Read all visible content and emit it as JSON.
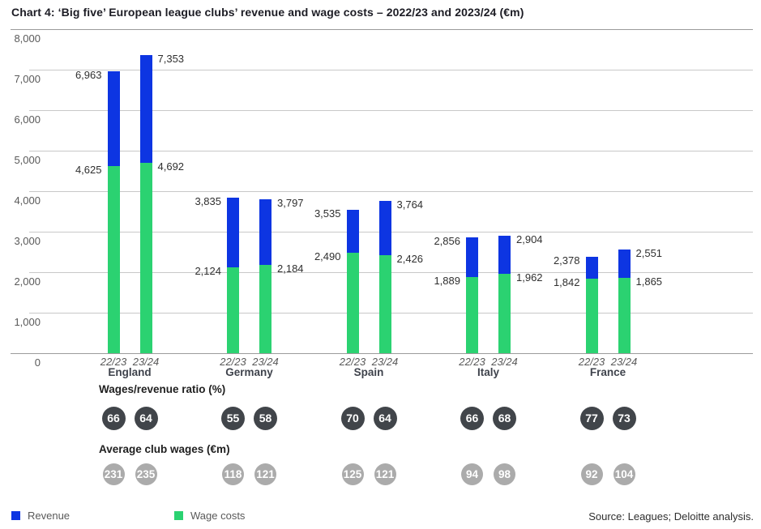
{
  "title": "Chart 4: ‘Big five’ European league clubs’ revenue and wage costs – 2022/23 and 2023/24 (€m)",
  "chart_data": {
    "type": "bar",
    "subtype": "overlaid-columns",
    "unit": "€m",
    "groups": [
      "England",
      "Germany",
      "Spain",
      "Italy",
      "France"
    ],
    "seasons": [
      "22/23",
      "23/24"
    ],
    "series": [
      {
        "name": "Revenue",
        "color": "#0d35e2",
        "values": [
          [
            6963,
            7353
          ],
          [
            3835,
            3797
          ],
          [
            3535,
            3764
          ],
          [
            2856,
            2904
          ],
          [
            2378,
            2551
          ]
        ]
      },
      {
        "name": "Wage costs",
        "color": "#2bd271",
        "values": [
          [
            4625,
            4692
          ],
          [
            2124,
            2184
          ],
          [
            2490,
            2426
          ],
          [
            1889,
            1962
          ],
          [
            1842,
            1865
          ]
        ]
      }
    ],
    "y_axis": {
      "min": 0,
      "max": 8000,
      "step": 1000,
      "tick_labels": [
        "8,000",
        "7,000",
        "6,000",
        "5,000",
        "4,000",
        "3,000",
        "2,000",
        "1,000",
        "0"
      ]
    },
    "grid": "horizontal",
    "gridline_color": "#c8c8c8",
    "border_line_color": "#9b9b9b",
    "value_label_color": "#2f2f2f"
  },
  "ratio_section": {
    "label": "Wages/revenue ratio (%)",
    "circle_color": "#41454a",
    "values": [
      [
        66,
        64
      ],
      [
        55,
        58
      ],
      [
        70,
        64
      ],
      [
        66,
        68
      ],
      [
        77,
        73
      ]
    ]
  },
  "avg_wages_section": {
    "label": "Average club wages (€m)",
    "circle_color": "#ababab",
    "values": [
      [
        231,
        235
      ],
      [
        118,
        121
      ],
      [
        125,
        121
      ],
      [
        94,
        98
      ],
      [
        92,
        104
      ]
    ]
  },
  "legend": [
    {
      "label": "Revenue",
      "color": "#0d35e2"
    },
    {
      "label": "Wage costs",
      "color": "#2bd271"
    }
  ],
  "source": "Source: Leagues; Deloitte analysis."
}
